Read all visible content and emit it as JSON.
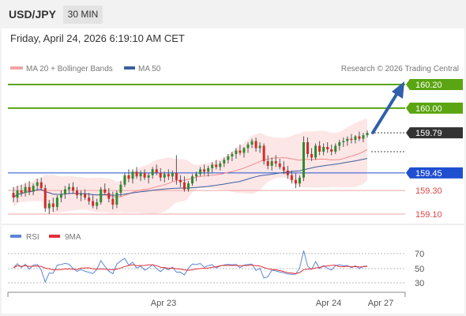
{
  "header": {
    "symbol": "USD/JPY",
    "timeframe": "30 MIN"
  },
  "datetime": "Friday, April 24, 2026 6:19:10 AM CET",
  "legend": [
    {
      "label": "MA 20 + Bollinger Bands",
      "color": "#f4a4a4"
    },
    {
      "label": "MA 50",
      "color": "#3b5f9e"
    }
  ],
  "copyright": "Research © 2026 Trading Central",
  "rsi_legend": [
    {
      "label": "RSI",
      "color": "#5b86d6"
    },
    {
      "label": "9MA",
      "color": "#e3303a"
    }
  ],
  "colors": {
    "up": "#2e8b2e",
    "down": "#d42b2b",
    "green_level": "#5aa511",
    "blue_level": "#1f4fd1",
    "red_level": "#f2a5a5",
    "arrow": "#2f5faa"
  },
  "chart_data": {
    "type": "candlestick",
    "ylim": [
      158.95,
      160.32
    ],
    "last_price": 159.79,
    "levels": [
      {
        "label": "160.20",
        "value": 160.2,
        "kind": "resistance"
      },
      {
        "label": "160.00",
        "value": 160.0,
        "kind": "resistance"
      },
      {
        "label": "159.79",
        "value": 159.79,
        "kind": "last"
      },
      {
        "label": "159.45",
        "value": 159.45,
        "kind": "pivot"
      },
      {
        "label": "159.30",
        "value": 159.3,
        "kind": "support"
      },
      {
        "label": "159.10",
        "value": 159.1,
        "kind": "support"
      }
    ],
    "x_labels": [
      "Apr 23",
      "Apr 24",
      "Apr 27"
    ],
    "rsi_ticks": [
      "70",
      "50",
      "30"
    ],
    "candles": [
      [
        159.28,
        159.33,
        159.2,
        159.24
      ],
      [
        159.24,
        159.34,
        159.2,
        159.3
      ],
      [
        159.3,
        159.35,
        159.25,
        159.28
      ],
      [
        159.28,
        159.36,
        159.25,
        159.33
      ],
      [
        159.33,
        159.38,
        159.26,
        159.29
      ],
      [
        159.29,
        159.36,
        159.26,
        159.34
      ],
      [
        159.34,
        159.4,
        159.3,
        159.37
      ],
      [
        159.37,
        159.41,
        159.3,
        159.32
      ],
      [
        159.32,
        159.35,
        159.12,
        159.15
      ],
      [
        159.15,
        159.22,
        159.1,
        159.19
      ],
      [
        159.19,
        159.24,
        159.12,
        159.16
      ],
      [
        159.16,
        159.26,
        159.13,
        159.24
      ],
      [
        159.24,
        159.3,
        159.2,
        159.27
      ],
      [
        159.27,
        159.34,
        159.23,
        159.31
      ],
      [
        159.31,
        159.36,
        159.27,
        159.33
      ],
      [
        159.33,
        159.37,
        159.28,
        159.3
      ],
      [
        159.3,
        159.33,
        159.23,
        159.26
      ],
      [
        159.26,
        159.3,
        159.21,
        159.27
      ],
      [
        159.27,
        159.31,
        159.22,
        159.24
      ],
      [
        159.24,
        159.28,
        159.18,
        159.21
      ],
      [
        159.21,
        159.26,
        159.15,
        159.17
      ],
      [
        159.17,
        159.23,
        159.14,
        159.2
      ],
      [
        159.2,
        159.33,
        159.18,
        159.31
      ],
      [
        159.31,
        159.36,
        159.27,
        159.28
      ],
      [
        159.28,
        159.32,
        159.2,
        159.23
      ],
      [
        159.23,
        159.29,
        159.14,
        159.18
      ],
      [
        159.18,
        159.3,
        159.15,
        159.28
      ],
      [
        159.28,
        159.38,
        159.25,
        159.35
      ],
      [
        159.35,
        159.45,
        159.33,
        159.43
      ],
      [
        159.43,
        159.48,
        159.37,
        159.4
      ],
      [
        159.4,
        159.48,
        159.36,
        159.46
      ],
      [
        159.46,
        159.5,
        159.4,
        159.42
      ],
      [
        159.42,
        159.47,
        159.38,
        159.45
      ],
      [
        159.45,
        159.48,
        159.39,
        159.41
      ],
      [
        159.41,
        159.45,
        159.36,
        159.43
      ],
      [
        159.43,
        159.5,
        159.4,
        159.48
      ],
      [
        159.48,
        159.52,
        159.43,
        159.45
      ],
      [
        159.45,
        159.49,
        159.38,
        159.41
      ],
      [
        159.41,
        159.46,
        159.37,
        159.44
      ],
      [
        159.44,
        159.48,
        159.39,
        159.42
      ],
      [
        159.42,
        159.47,
        159.38,
        159.45
      ],
      [
        159.45,
        159.6,
        159.35,
        159.39
      ],
      [
        159.39,
        159.43,
        159.33,
        159.37
      ],
      [
        159.37,
        159.42,
        159.29,
        159.31
      ],
      [
        159.31,
        159.38,
        159.29,
        159.36
      ],
      [
        159.36,
        159.44,
        159.34,
        159.42
      ],
      [
        159.42,
        159.46,
        159.38,
        159.44
      ],
      [
        159.44,
        159.5,
        159.42,
        159.48
      ],
      [
        159.48,
        159.52,
        159.43,
        159.46
      ],
      [
        159.46,
        159.51,
        159.42,
        159.49
      ],
      [
        159.49,
        159.54,
        159.45,
        159.52
      ],
      [
        159.52,
        159.56,
        159.48,
        159.5
      ],
      [
        159.5,
        159.55,
        159.47,
        159.53
      ],
      [
        159.53,
        159.58,
        159.5,
        159.56
      ],
      [
        159.56,
        159.61,
        159.53,
        159.59
      ],
      [
        159.59,
        159.63,
        159.55,
        159.61
      ],
      [
        159.61,
        159.66,
        159.57,
        159.64
      ],
      [
        159.64,
        159.69,
        159.6,
        159.62
      ],
      [
        159.62,
        159.67,
        159.58,
        159.66
      ],
      [
        159.66,
        159.71,
        159.62,
        159.69
      ],
      [
        159.69,
        159.74,
        159.66,
        159.72
      ],
      [
        159.72,
        159.75,
        159.63,
        159.66
      ],
      [
        159.66,
        159.71,
        159.62,
        159.68
      ],
      [
        159.68,
        159.7,
        159.52,
        159.55
      ],
      [
        159.55,
        159.6,
        159.48,
        159.51
      ],
      [
        159.51,
        159.58,
        159.47,
        159.55
      ],
      [
        159.55,
        159.6,
        159.5,
        159.53
      ],
      [
        159.53,
        159.57,
        159.48,
        159.5
      ],
      [
        159.5,
        159.55,
        159.44,
        159.47
      ],
      [
        159.47,
        159.51,
        159.4,
        159.43
      ],
      [
        159.43,
        159.47,
        159.36,
        159.39
      ],
      [
        159.39,
        159.45,
        159.32,
        159.36
      ],
      [
        159.36,
        159.43,
        159.33,
        159.41
      ],
      [
        159.41,
        159.76,
        159.38,
        159.71
      ],
      [
        159.71,
        159.75,
        159.58,
        159.61
      ],
      [
        159.61,
        159.66,
        159.55,
        159.58
      ],
      [
        159.58,
        159.7,
        159.56,
        159.68
      ],
      [
        159.68,
        159.72,
        159.6,
        159.63
      ],
      [
        159.63,
        159.7,
        159.6,
        159.67
      ],
      [
        159.67,
        159.71,
        159.62,
        159.65
      ],
      [
        159.65,
        159.69,
        159.6,
        159.63
      ],
      [
        159.63,
        159.7,
        159.61,
        159.68
      ],
      [
        159.68,
        159.73,
        159.64,
        159.71
      ],
      [
        159.71,
        159.75,
        159.67,
        159.72
      ],
      [
        159.72,
        159.76,
        159.68,
        159.74
      ],
      [
        159.74,
        159.78,
        159.7,
        159.73
      ],
      [
        159.73,
        159.77,
        159.7,
        159.76
      ],
      [
        159.76,
        159.8,
        159.72,
        159.74
      ],
      [
        159.74,
        159.79,
        159.71,
        159.77
      ],
      [
        159.77,
        159.81,
        159.75,
        159.79
      ]
    ]
  }
}
